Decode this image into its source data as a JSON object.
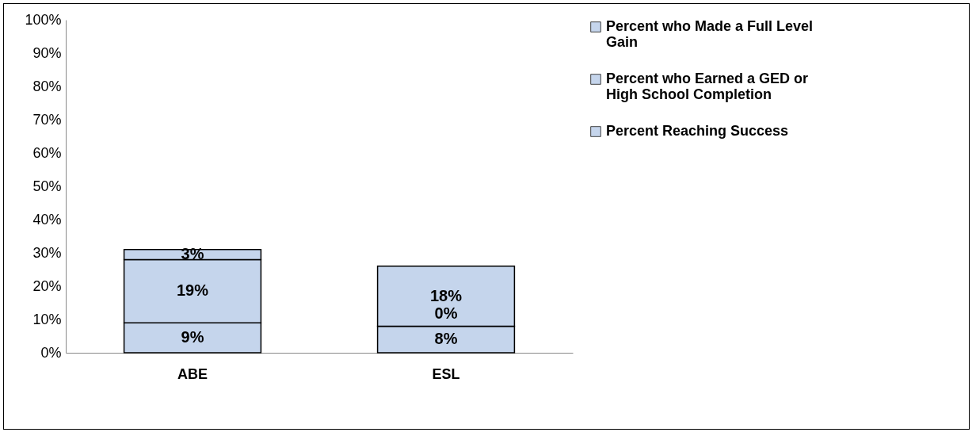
{
  "chart_data": {
    "type": "bar",
    "stacked": true,
    "categories": [
      "ABE",
      "ESL"
    ],
    "series": [
      {
        "name": "Percent Reaching Success",
        "color": "#c5d5ec",
        "values": [
          9,
          8
        ],
        "value_labels": [
          "9%",
          "8%"
        ]
      },
      {
        "name": "Percent who Earned a GED or High School Completion",
        "color": "#c5d5ec",
        "values": [
          19,
          0
        ],
        "value_labels": [
          "19%",
          "0%"
        ]
      },
      {
        "name": "Percent who Made a Full Level Gain",
        "color": "#c5d5ec",
        "values": [
          3,
          18
        ],
        "value_labels": [
          "3%",
          "18%"
        ]
      }
    ],
    "ylim": [
      0,
      100
    ],
    "yticks": [
      {
        "value": 0,
        "label": "0%"
      },
      {
        "value": 10,
        "label": "10%"
      },
      {
        "value": 20,
        "label": "20%"
      },
      {
        "value": 30,
        "label": "30%"
      },
      {
        "value": 40,
        "label": "40%"
      },
      {
        "value": 50,
        "label": "50%"
      },
      {
        "value": 60,
        "label": "60%"
      },
      {
        "value": 70,
        "label": "70%"
      },
      {
        "value": 80,
        "label": "80%"
      },
      {
        "value": 90,
        "label": "90%"
      },
      {
        "value": 100,
        "label": "100%"
      }
    ],
    "grid": false,
    "legend": "right"
  }
}
